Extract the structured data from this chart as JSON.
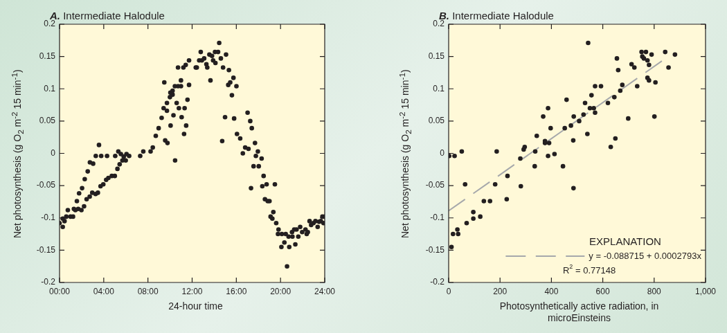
{
  "chart_data": [
    {
      "type": "scatter",
      "title": "A. Intermediate Halodule",
      "xlabel": "24-hour time",
      "ylabel": "Net photosynthesis (g O$_{2}$ m$^{-2}$ 15 min$^{-1}$)",
      "marker": "circle",
      "xlim": [
        0,
        24
      ],
      "xticks": [
        {
          "value": 0,
          "label": "00:00"
        },
        {
          "value": 4,
          "label": "04:00"
        },
        {
          "value": 8,
          "label": "08:00"
        },
        {
          "value": 12,
          "label": "12:00"
        },
        {
          "value": 16,
          "label": "16:00"
        },
        {
          "value": 20,
          "label": "20:00"
        },
        {
          "value": 24,
          "label": "24:00"
        }
      ],
      "ylim": [
        -0.2,
        0.2
      ],
      "yticks": [
        -0.2,
        -0.15,
        -0.1,
        -0.05,
        0,
        0.05,
        0.1,
        0.15,
        0.2
      ],
      "series": [
        {
          "color": "#231f20",
          "x": [
            0,
            0.29,
            0.29,
            0.45,
            0.61,
            0.75,
            1.0,
            1.22,
            1.3,
            1.57,
            1.43,
            1.69,
            1.77,
            1.98,
            2.04,
            2.22,
            2.28,
            2.45,
            2.55,
            2.73,
            2.75,
            3.04,
            2.96,
            3.26,
            3.28,
            3.47,
            3.57,
            3.71,
            3.77,
            3.96,
            4.22,
            4.3,
            4.42,
            4.73,
            5.0,
            5.04,
            5.24,
            5.32,
            5.44,
            5.55,
            5.69,
            5.81,
            5.99,
            6.06,
            6.3,
            7.3,
            7.58,
            8.24,
            8.44,
            8.71,
            8.97,
            9.24,
            9.42,
            9.48,
            9.56,
            9.77,
            9.72,
            9.72,
            9.99,
            10.05,
            10.03,
            10.23,
            10.31,
            10.23,
            10.46,
            10.44,
            10.6,
            10.72,
            10.72,
            10.8,
            10.99,
            10.99,
            11.05,
            11.21,
            11.27,
            11.32,
            11.42,
            11.46,
            11.58,
            11.72,
            11.72,
            12.33,
            12.42,
            12.78,
            12.64,
            12.88,
            13.09,
            13.29,
            13.37,
            13.56,
            13.66,
            13.8,
            13.9,
            14.07,
            14.11,
            14.35,
            14.45,
            14.6,
            14.72,
            14.8,
            14.98,
            15.07,
            15.33,
            15.27,
            15.45,
            15.6,
            15.74,
            15.8,
            16.01,
            16.06,
            16.35,
            16.59,
            16.8,
            17.02,
            17.1,
            17.26,
            17.33,
            17.4,
            17.56,
            17.69,
            17.77,
            17.95,
            18.03,
            18.29,
            18.35,
            18.47,
            18.59,
            18.74,
            18.84,
            19.0,
            19.1,
            19.26,
            19.35,
            19.49,
            19.61,
            19.77,
            19.82,
            20.08,
            20.12,
            20.35,
            20.47,
            20.59,
            20.73,
            20.79,
            21.04,
            21.08,
            21.24,
            21.34,
            21.45,
            21.61,
            21.78,
            21.96,
            22.26,
            22.37,
            22.47,
            22.63,
            22.77,
            22.98,
            23.16,
            23.36,
            23.49,
            23.65,
            23.79,
            23.89,
            24.0
          ],
          "values": [
            -0.108,
            -0.114,
            -0.101,
            -0.105,
            -0.098,
            -0.088,
            -0.098,
            -0.098,
            -0.086,
            -0.074,
            -0.088,
            -0.086,
            -0.062,
            -0.088,
            -0.054,
            -0.082,
            -0.04,
            -0.071,
            -0.028,
            -0.067,
            -0.014,
            -0.016,
            -0.061,
            -0.063,
            -0.004,
            -0.061,
            0.013,
            -0.051,
            -0.004,
            -0.048,
            -0.041,
            -0.004,
            -0.038,
            -0.035,
            -0.035,
            -0.004,
            -0.024,
            0.003,
            -0.017,
            -0.001,
            -0.011,
            -0.005,
            -0.011,
            -0.001,
            -0.004,
            -0.004,
            0.003,
            0.003,
            0.009,
            0.027,
            0.039,
            0.055,
            0.07,
            0.11,
            0.02,
            0.016,
            0.078,
            0.066,
            0.087,
            0.043,
            0.094,
            0.091,
            0.059,
            0.097,
            -0.011,
            0.104,
            0.078,
            0.104,
            0.133,
            0.07,
            0.104,
            0.113,
            0.056,
            0.133,
            0.03,
            0.07,
            0.137,
            0.043,
            0.083,
            0.144,
            0.106,
            0.133,
            0.133,
            0.157,
            0.144,
            0.144,
            0.147,
            0.138,
            0.133,
            0.153,
            0.113,
            0.151,
            0.144,
            0.157,
            0.14,
            0.157,
            0.171,
            0.147,
            0.019,
            0.133,
            0.056,
            0.153,
            0.129,
            0.106,
            0.11,
            0.09,
            0.117,
            0.054,
            0.104,
            0.03,
            0.023,
            0.0,
            0.009,
            0.063,
            0.007,
            0.05,
            -0.054,
            0.039,
            -0.02,
            0.016,
            -0.004,
            0.003,
            -0.02,
            -0.008,
            -0.051,
            -0.035,
            -0.071,
            -0.048,
            -0.074,
            -0.074,
            -0.098,
            -0.101,
            -0.091,
            -0.048,
            -0.108,
            -0.125,
            -0.118,
            -0.145,
            -0.125,
            -0.138,
            -0.125,
            -0.175,
            -0.129,
            -0.145,
            -0.122,
            -0.129,
            -0.118,
            -0.141,
            -0.118,
            -0.129,
            -0.114,
            -0.122,
            -0.118,
            -0.125,
            -0.122,
            -0.105,
            -0.111,
            -0.108,
            -0.105,
            -0.114,
            -0.106,
            -0.105,
            -0.098,
            -0.108,
            -0.098
          ]
        }
      ]
    },
    {
      "type": "scatter",
      "title": "B. Intermediate Halodule",
      "xlabel": "Photosynthetically active radiation, in microEinsteins",
      "ylabel": "Net photosynthesis (g O$_{2}$ m$^{-2}$ 15 min$^{-1}$)",
      "marker": "circle",
      "xlim": [
        0,
        1000
      ],
      "xticks": [
        0,
        200,
        400,
        600,
        800,
        {
          "value": 1000,
          "label": "1,000"
        }
      ],
      "ylim": [
        -0.2,
        0.2
      ],
      "yticks": [
        -0.2,
        -0.15,
        -0.1,
        -0.05,
        0,
        0.05,
        0.1,
        0.15,
        0.2
      ],
      "legend": "bottom right",
      "legend_title": "EXPLANATION",
      "annotations": [
        "R$^{2}$ = 0.77148"
      ],
      "series": [
        {
          "color": "#231f20",
          "x": [
            2,
            23,
            51,
            64,
            11,
            17,
            34,
            37,
            70,
            96,
            96,
            123,
            137,
            161,
            181,
            187,
            226,
            229,
            279,
            281,
            292,
            296,
            335,
            337,
            343,
            368,
            375,
            375,
            387,
            387,
            391,
            397,
            412,
            445,
            452,
            459,
            476,
            485,
            486,
            487,
            508,
            525,
            531,
            540,
            543,
            550,
            556,
            565,
            570,
            570,
            593,
            620,
            631,
            645,
            649,
            655,
            660,
            668,
            676,
            699,
            712,
            723,
            734,
            751,
            754,
            760,
            768,
            774,
            780,
            774,
            780,
            790,
            801,
            805,
            843,
            856,
            881
          ],
          "values": [
            -0.004,
            -0.004,
            0.003,
            -0.048,
            -0.145,
            -0.125,
            -0.118,
            -0.125,
            -0.108,
            -0.101,
            -0.091,
            -0.098,
            -0.074,
            -0.074,
            -0.048,
            0.003,
            -0.071,
            -0.035,
            -0.008,
            -0.051,
            0.006,
            0.01,
            -0.02,
            0.003,
            0.027,
            0.057,
            0.019,
            0.016,
            0.07,
            -0.004,
            0.016,
            0.039,
            -0.001,
            -0.02,
            0.039,
            0.083,
            0.043,
            0.02,
            -0.054,
            0.057,
            0.05,
            0.06,
            0.078,
            0.03,
            0.171,
            0.07,
            0.09,
            0.07,
            0.104,
            0.063,
            0.104,
            0.078,
            0.01,
            0.087,
            0.023,
            0.147,
            0.129,
            0.097,
            0.106,
            0.054,
            0.138,
            0.133,
            0.104,
            0.157,
            0.15,
            0.147,
            0.157,
            0.144,
            0.137,
            0.117,
            0.113,
            0.153,
            0.057,
            0.11,
            0.157,
            0.133,
            0.153
          ]
        },
        {
          "type": "line",
          "name": "y = -0.088715 + 0.0002793x",
          "color": "#a6a8ab",
          "line_style": "dashed",
          "marker": "none",
          "x": [
            0,
            830
          ],
          "values": [
            -0.089,
            0.143
          ]
        }
      ]
    }
  ]
}
